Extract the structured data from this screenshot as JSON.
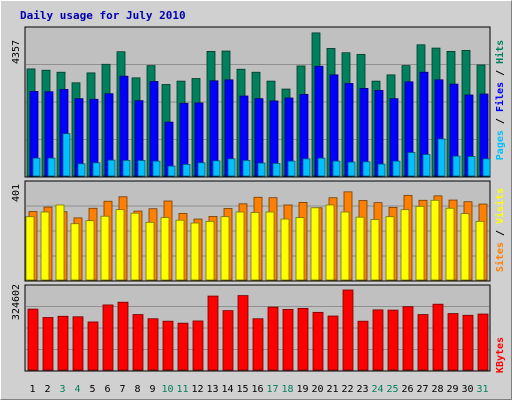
{
  "title": "Daily usage for July 2010",
  "colors": {
    "title": "#0000b0",
    "pages": "#00c0ff",
    "files": "#0000ff",
    "hits": "#00805c",
    "sites": "#ff8000",
    "visits": "#ffff00",
    "kbytes": "#ff0000",
    "weekend_day": "#00805c",
    "weekday": "#000000",
    "plot_bg": "#c0c0c0",
    "frame_bg": "#d0d0d0"
  },
  "chart_data": {
    "type": "bar",
    "title": "Daily usage for July 2010",
    "categories": [
      "1",
      "2",
      "3",
      "4",
      "5",
      "6",
      "7",
      "8",
      "9",
      "10",
      "11",
      "12",
      "13",
      "14",
      "15",
      "16",
      "17",
      "18",
      "19",
      "20",
      "21",
      "22",
      "23",
      "24",
      "25",
      "26",
      "27",
      "28",
      "29",
      "30",
      "31"
    ],
    "weekend_days": [
      "3",
      "4",
      "10",
      "11",
      "17",
      "18",
      "24",
      "25",
      "31"
    ],
    "panels": [
      {
        "id": "top",
        "max_label": "4357",
        "ymax": 4357,
        "legend": [
          "Pages",
          "Files",
          "Hits"
        ],
        "series": [
          {
            "name": "Hits",
            "values": [
              3240,
              3200,
              3140,
              2820,
              3120,
              3380,
              3760,
              2970,
              3340,
              2770,
              2870,
              2950,
              3770,
              3780,
              3230,
              3140,
              2870,
              2630,
              3330,
              4330,
              3860,
              3730,
              3680,
              2870,
              3060,
              3340,
              3970,
              3870,
              3770,
              3800,
              3360
            ]
          },
          {
            "name": "Files",
            "values": [
              2560,
              2550,
              2620,
              2340,
              2320,
              2490,
              3020,
              2280,
              2860,
              1630,
              2200,
              2210,
              2880,
              2910,
              2420,
              2340,
              2270,
              2360,
              2470,
              3320,
              3060,
              2800,
              2650,
              2590,
              2340,
              2850,
              3140,
              2910,
              2780,
              2450,
              2480
            ]
          },
          {
            "name": "Pages",
            "values": [
              540,
              540,
              1280,
              370,
              400,
              480,
              470,
              470,
              450,
              300,
              350,
              400,
              460,
              520,
              470,
              390,
              380,
              450,
              520,
              540,
              450,
              420,
              430,
              360,
              450,
              710,
              650,
              1120,
              600,
              590,
              520
            ]
          }
        ]
      },
      {
        "id": "middle",
        "max_label": "401",
        "ymax": 401,
        "legend": [
          "Sites",
          "Visits"
        ],
        "series": [
          {
            "name": "Sites",
            "values": [
              292,
              311,
              291,
              265,
              306,
              336,
              355,
              294,
              304,
              337,
              284,
              260,
              271,
              305,
              325,
              353,
              351,
              320,
              331,
              308,
              351,
              376,
              339,
              330,
              310,
              361,
              340,
              359,
              341,
              334,
              324
            ]
          },
          {
            "name": "Visits",
            "values": [
              270,
              290,
              320,
              240,
              253,
              272,
              300,
              285,
              246,
              266,
              255,
              243,
              250,
              270,
              290,
              288,
              290,
              260,
              266,
              308,
              320,
              290,
              268,
              258,
              270,
              300,
              314,
              340,
              306,
              283,
              250
            ]
          }
        ]
      },
      {
        "id": "bottom",
        "max_label": "324602",
        "ymax": 324602,
        "legend": [
          "KBytes"
        ],
        "series": [
          {
            "name": "KBytes",
            "values": [
              247000,
              213000,
              218000,
              216000,
              195000,
              264000,
              275000,
              225000,
              208000,
              198000,
              190000,
              199000,
              300000,
              241000,
              302000,
              208000,
              255000,
              246000,
              250000,
              234000,
              219000,
              324602,
              198000,
              244000,
              243000,
              257000,
              225000,
              267000,
              229000,
              222000,
              227000
            ]
          }
        ]
      }
    ]
  }
}
